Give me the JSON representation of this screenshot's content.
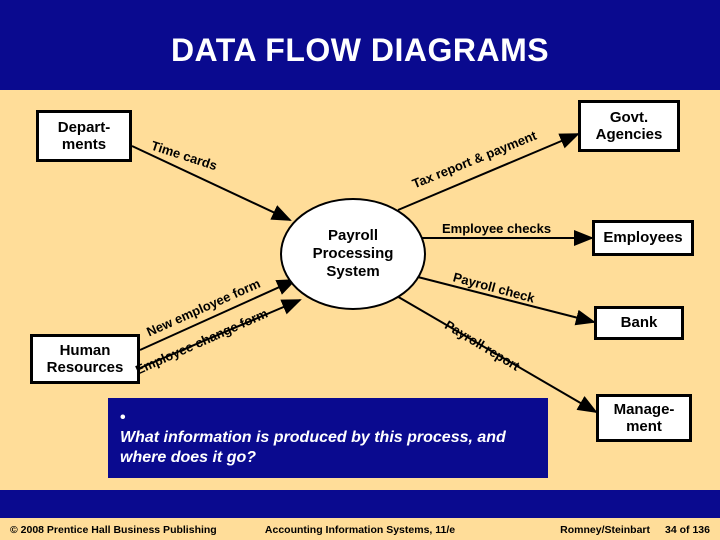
{
  "title": "DATA FLOW DIAGRAMS",
  "background_color": "#ffdd99",
  "frame_color": "#0a0a8f",
  "entities": {
    "departments": "Depart-\nments",
    "govt": "Govt.\nAgencies",
    "employees": "Employees",
    "bank": "Bank",
    "management": "Manage-\nment",
    "hr": "Human\nResources"
  },
  "process": "Payroll\nProcessing\nSystem",
  "edges": {
    "time_cards": "Time cards",
    "tax_report": "Tax report & payment",
    "emp_checks": "Employee checks",
    "payroll_check": "Payroll check",
    "payroll_report": "Payroll report",
    "new_emp": "New employee form",
    "emp_change": "Employee change form"
  },
  "bullet": "What information is produced by this process, and where does it go?",
  "footer": {
    "copyright": "© 2008 Prentice Hall Business Publishing",
    "book": "Accounting Information Systems, 11/e",
    "authors": "Romney/Steinbart",
    "page": "34 of 136"
  }
}
